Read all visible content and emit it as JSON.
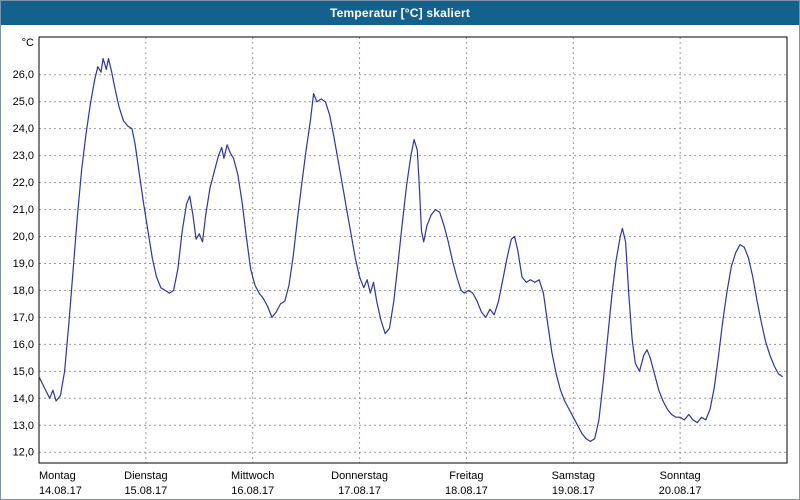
{
  "window": {
    "title": "Temperatur [°C] skaliert"
  },
  "colors": {
    "titlebar": "#15618e",
    "title_text": "#ffffff",
    "line": "#2b35a5",
    "grid": "#9a9a9a",
    "plot_border": "#000000",
    "background": "#ffffff"
  },
  "chart_data": {
    "type": "line",
    "title": "Temperatur [°C] skaliert",
    "unit_label": "°C",
    "grid": true,
    "legend": "none",
    "ylim": [
      11.6,
      27.4
    ],
    "y_ticks": [
      12,
      13,
      14,
      15,
      16,
      17,
      18,
      19,
      20,
      21,
      22,
      23,
      24,
      25,
      26
    ],
    "y_tick_labels": [
      "12,0",
      "13,0",
      "14,0",
      "15,0",
      "16,0",
      "17,0",
      "18,0",
      "19,0",
      "20,0",
      "21,0",
      "22,0",
      "23,0",
      "24,0",
      "25,0",
      "26,0"
    ],
    "x_range_days": [
      0,
      7
    ],
    "days": [
      {
        "name": "Montag",
        "date": "14.08.17"
      },
      {
        "name": "Dienstag",
        "date": "15.08.17"
      },
      {
        "name": "Mittwoch",
        "date": "16.08.17"
      },
      {
        "name": "Donnerstag",
        "date": "17.08.17"
      },
      {
        "name": "Freitag",
        "date": "18.08.17"
      },
      {
        "name": "Samstag",
        "date": "19.08.17"
      },
      {
        "name": "Sonntag",
        "date": "20.08.17"
      }
    ],
    "series": [
      {
        "name": "Temperatur [°C]",
        "color": "#2b35a5",
        "points": [
          [
            0.0,
            14.8
          ],
          [
            0.05,
            14.4
          ],
          [
            0.1,
            14.0
          ],
          [
            0.13,
            14.3
          ],
          [
            0.16,
            13.9
          ],
          [
            0.2,
            14.1
          ],
          [
            0.24,
            15.0
          ],
          [
            0.28,
            16.8
          ],
          [
            0.32,
            18.8
          ],
          [
            0.36,
            20.8
          ],
          [
            0.4,
            22.5
          ],
          [
            0.44,
            23.8
          ],
          [
            0.48,
            24.9
          ],
          [
            0.52,
            25.8
          ],
          [
            0.55,
            26.3
          ],
          [
            0.58,
            26.1
          ],
          [
            0.6,
            26.6
          ],
          [
            0.63,
            26.2
          ],
          [
            0.65,
            26.6
          ],
          [
            0.68,
            26.1
          ],
          [
            0.71,
            25.5
          ],
          [
            0.75,
            24.8
          ],
          [
            0.79,
            24.3
          ],
          [
            0.83,
            24.1
          ],
          [
            0.87,
            24.0
          ],
          [
            0.9,
            23.4
          ],
          [
            0.94,
            22.3
          ],
          [
            0.98,
            21.2
          ],
          [
            1.02,
            20.2
          ],
          [
            1.06,
            19.2
          ],
          [
            1.1,
            18.5
          ],
          [
            1.14,
            18.1
          ],
          [
            1.18,
            18.0
          ],
          [
            1.22,
            17.9
          ],
          [
            1.26,
            18.0
          ],
          [
            1.3,
            18.8
          ],
          [
            1.34,
            20.2
          ],
          [
            1.38,
            21.2
          ],
          [
            1.41,
            21.5
          ],
          [
            1.44,
            20.8
          ],
          [
            1.47,
            19.9
          ],
          [
            1.5,
            20.1
          ],
          [
            1.53,
            19.8
          ],
          [
            1.56,
            20.8
          ],
          [
            1.6,
            21.8
          ],
          [
            1.64,
            22.4
          ],
          [
            1.68,
            23.0
          ],
          [
            1.71,
            23.3
          ],
          [
            1.73,
            22.9
          ],
          [
            1.76,
            23.4
          ],
          [
            1.79,
            23.1
          ],
          [
            1.82,
            22.9
          ],
          [
            1.86,
            22.3
          ],
          [
            1.9,
            21.3
          ],
          [
            1.94,
            20.0
          ],
          [
            1.98,
            18.8
          ],
          [
            2.02,
            18.2
          ],
          [
            2.06,
            17.9
          ],
          [
            2.1,
            17.7
          ],
          [
            2.14,
            17.4
          ],
          [
            2.18,
            17.0
          ],
          [
            2.22,
            17.2
          ],
          [
            2.26,
            17.5
          ],
          [
            2.3,
            17.6
          ],
          [
            2.34,
            18.2
          ],
          [
            2.38,
            19.3
          ],
          [
            2.42,
            20.7
          ],
          [
            2.46,
            22.0
          ],
          [
            2.5,
            23.2
          ],
          [
            2.54,
            24.3
          ],
          [
            2.57,
            25.3
          ],
          [
            2.6,
            25.0
          ],
          [
            2.64,
            25.1
          ],
          [
            2.68,
            25.0
          ],
          [
            2.72,
            24.5
          ],
          [
            2.76,
            23.7
          ],
          [
            2.8,
            22.8
          ],
          [
            2.84,
            21.9
          ],
          [
            2.88,
            21.0
          ],
          [
            2.92,
            20.1
          ],
          [
            2.96,
            19.2
          ],
          [
            3.0,
            18.5
          ],
          [
            3.04,
            18.1
          ],
          [
            3.07,
            18.4
          ],
          [
            3.1,
            17.9
          ],
          [
            3.13,
            18.3
          ],
          [
            3.16,
            17.6
          ],
          [
            3.2,
            16.9
          ],
          [
            3.24,
            16.4
          ],
          [
            3.28,
            16.6
          ],
          [
            3.32,
            17.6
          ],
          [
            3.36,
            19.0
          ],
          [
            3.4,
            20.5
          ],
          [
            3.44,
            21.9
          ],
          [
            3.48,
            23.0
          ],
          [
            3.51,
            23.6
          ],
          [
            3.54,
            23.2
          ],
          [
            3.56,
            21.8
          ],
          [
            3.58,
            20.2
          ],
          [
            3.6,
            19.8
          ],
          [
            3.63,
            20.4
          ],
          [
            3.67,
            20.8
          ],
          [
            3.71,
            21.0
          ],
          [
            3.75,
            20.9
          ],
          [
            3.79,
            20.4
          ],
          [
            3.83,
            19.8
          ],
          [
            3.87,
            19.1
          ],
          [
            3.91,
            18.5
          ],
          [
            3.95,
            18.0
          ],
          [
            3.98,
            17.9
          ],
          [
            4.02,
            18.0
          ],
          [
            4.06,
            17.9
          ],
          [
            4.1,
            17.6
          ],
          [
            4.14,
            17.2
          ],
          [
            4.18,
            17.0
          ],
          [
            4.22,
            17.3
          ],
          [
            4.26,
            17.1
          ],
          [
            4.3,
            17.6
          ],
          [
            4.34,
            18.4
          ],
          [
            4.38,
            19.2
          ],
          [
            4.42,
            19.9
          ],
          [
            4.45,
            20.0
          ],
          [
            4.48,
            19.5
          ],
          [
            4.52,
            18.5
          ],
          [
            4.56,
            18.3
          ],
          [
            4.6,
            18.4
          ],
          [
            4.64,
            18.3
          ],
          [
            4.68,
            18.4
          ],
          [
            4.72,
            17.9
          ],
          [
            4.76,
            16.8
          ],
          [
            4.8,
            15.7
          ],
          [
            4.84,
            14.9
          ],
          [
            4.88,
            14.3
          ],
          [
            4.92,
            13.9
          ],
          [
            4.96,
            13.6
          ],
          [
            5.0,
            13.3
          ],
          [
            5.04,
            13.0
          ],
          [
            5.08,
            12.7
          ],
          [
            5.12,
            12.5
          ],
          [
            5.16,
            12.4
          ],
          [
            5.2,
            12.5
          ],
          [
            5.24,
            13.2
          ],
          [
            5.28,
            14.6
          ],
          [
            5.32,
            16.2
          ],
          [
            5.36,
            17.8
          ],
          [
            5.4,
            19.1
          ],
          [
            5.44,
            20.0
          ],
          [
            5.46,
            20.3
          ],
          [
            5.49,
            19.8
          ],
          [
            5.52,
            17.8
          ],
          [
            5.55,
            16.2
          ],
          [
            5.58,
            15.3
          ],
          [
            5.62,
            15.0
          ],
          [
            5.66,
            15.6
          ],
          [
            5.69,
            15.8
          ],
          [
            5.72,
            15.5
          ],
          [
            5.76,
            14.9
          ],
          [
            5.8,
            14.3
          ],
          [
            5.84,
            13.9
          ],
          [
            5.88,
            13.6
          ],
          [
            5.92,
            13.4
          ],
          [
            5.96,
            13.3
          ],
          [
            6.0,
            13.3
          ],
          [
            6.04,
            13.2
          ],
          [
            6.08,
            13.4
          ],
          [
            6.12,
            13.2
          ],
          [
            6.16,
            13.1
          ],
          [
            6.2,
            13.3
          ],
          [
            6.24,
            13.2
          ],
          [
            6.28,
            13.6
          ],
          [
            6.32,
            14.4
          ],
          [
            6.36,
            15.6
          ],
          [
            6.4,
            16.9
          ],
          [
            6.44,
            18.0
          ],
          [
            6.48,
            18.9
          ],
          [
            6.52,
            19.4
          ],
          [
            6.56,
            19.7
          ],
          [
            6.6,
            19.6
          ],
          [
            6.64,
            19.2
          ],
          [
            6.68,
            18.5
          ],
          [
            6.72,
            17.6
          ],
          [
            6.76,
            16.8
          ],
          [
            6.8,
            16.1
          ],
          [
            6.84,
            15.6
          ],
          [
            6.88,
            15.2
          ],
          [
            6.92,
            14.9
          ],
          [
            6.96,
            14.8
          ]
        ]
      }
    ]
  }
}
